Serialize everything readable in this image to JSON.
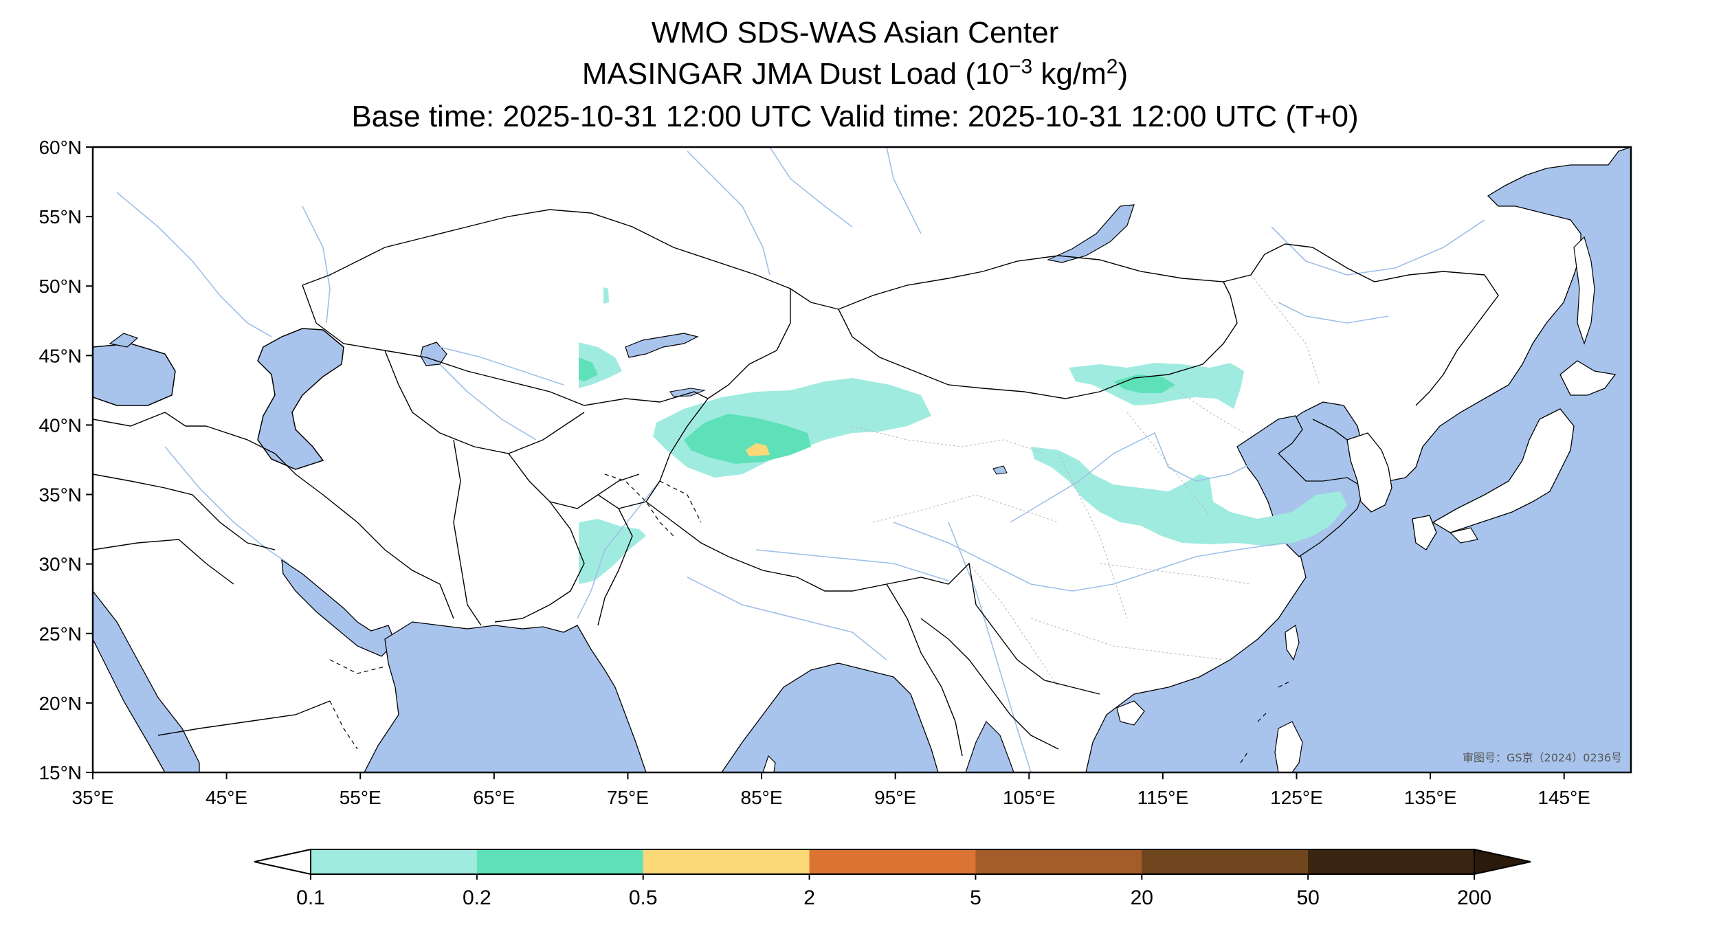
{
  "title": {
    "line1": "WMO SDS-WAS Asian Center",
    "line2_prefix": "MASINGAR JMA Dust Load (10",
    "line2_exponent": "−3",
    "line2_middle": " kg/m",
    "line2_exponent2": "2",
    "line2_suffix": ")",
    "line3": "Base time: 2025-10-31 12:00 UTC Valid time: 2025-10-31 12:00 UTC (T+0)"
  },
  "map_data": {
    "type": "map",
    "projection": "PlateCarree",
    "lon_range": [
      35,
      150
    ],
    "lat_range": [
      15,
      60
    ],
    "x_ticks": [
      {
        "value": 35,
        "label": "35°E"
      },
      {
        "value": 45,
        "label": "45°E"
      },
      {
        "value": 55,
        "label": "55°E"
      },
      {
        "value": 65,
        "label": "65°E"
      },
      {
        "value": 75,
        "label": "75°E"
      },
      {
        "value": 85,
        "label": "85°E"
      },
      {
        "value": 95,
        "label": "95°E"
      },
      {
        "value": 105,
        "label": "105°E"
      },
      {
        "value": 115,
        "label": "115°E"
      },
      {
        "value": 125,
        "label": "125°E"
      },
      {
        "value": 135,
        "label": "135°E"
      },
      {
        "value": 145,
        "label": "145°E"
      }
    ],
    "y_ticks": [
      {
        "value": 60,
        "label": "60°N"
      },
      {
        "value": 55,
        "label": "55°N"
      },
      {
        "value": 50,
        "label": "50°N"
      },
      {
        "value": 45,
        "label": "45°N"
      },
      {
        "value": 40,
        "label": "40°N"
      },
      {
        "value": 35,
        "label": "35°N"
      },
      {
        "value": 30,
        "label": "30°N"
      },
      {
        "value": 25,
        "label": "25°N"
      },
      {
        "value": 20,
        "label": "20°N"
      },
      {
        "value": 15,
        "label": "15°N"
      }
    ],
    "water_color": "#a8c4ec",
    "land_color": "#ffffff",
    "approval_text": "审图号：GS京（2024）0236号"
  },
  "colorbar": {
    "levels": [
      "0.1",
      "0.2",
      "0.5",
      "2",
      "5",
      "20",
      "50",
      "200"
    ],
    "colors": [
      "#a0ebe0",
      "#5ee1b8",
      "#fad878",
      "#dc7434",
      "#a45c28",
      "#6e451c",
      "#3a2412"
    ],
    "under_color": "#ffffff",
    "over_color": "#2a1a0c"
  },
  "dust_regions": [
    {
      "name": "taklimakan",
      "level": "0.1-0.2",
      "color": "#a0ebe0"
    },
    {
      "name": "taklimakan-core",
      "level": "0.2-0.5",
      "color": "#5ee1b8"
    },
    {
      "name": "taklimakan-peak",
      "level": "0.5-2",
      "color": "#fad878"
    },
    {
      "name": "balkhash",
      "level": "0.1-0.2",
      "color": "#a0ebe0"
    },
    {
      "name": "gobi-mongolia",
      "level": "0.1-0.2",
      "color": "#a0ebe0"
    },
    {
      "name": "gobi-core",
      "level": "0.2-0.5",
      "color": "#5ee1b8"
    },
    {
      "name": "north-china-plain",
      "level": "0.1-0.2",
      "color": "#a0ebe0"
    },
    {
      "name": "pakistan",
      "level": "0.1-0.2",
      "color": "#a0ebe0"
    }
  ]
}
